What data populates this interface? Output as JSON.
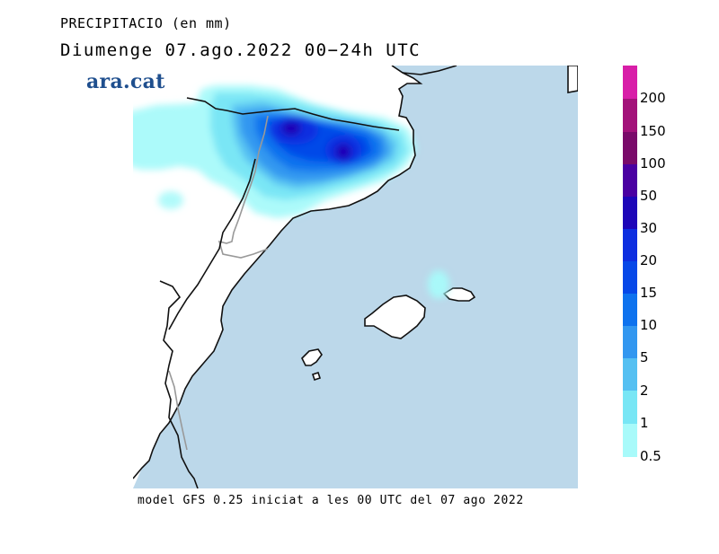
{
  "header": {
    "variable": "PRECIPITACIO (en mm)",
    "date": "Diumenge  07.ago.2022 00−24h UTC"
  },
  "logo": {
    "text": "ara.cat",
    "color": "#1f4f8e"
  },
  "footer": {
    "text": "model GFS 0.25 iniciat a les 00 UTC del 07 ago 2022"
  },
  "map": {
    "sea_color": "#bcd8ea",
    "land_color": "#ffffff",
    "coast_color": "#111111",
    "border_color": "#999999"
  },
  "legend": {
    "labels": [
      "200",
      "150",
      "100",
      "50",
      "30",
      "20",
      "15",
      "10",
      "5",
      "2",
      "1",
      "0.5"
    ],
    "colors": [
      "#d81ea8",
      "#a3127a",
      "#7a0a6a",
      "#4a00a2",
      "#1d06b8",
      "#0d2ee0",
      "#0648e8",
      "#0e72ee",
      "#3297f0",
      "#55c0f2",
      "#78e6f5",
      "#a8fafa"
    ]
  }
}
